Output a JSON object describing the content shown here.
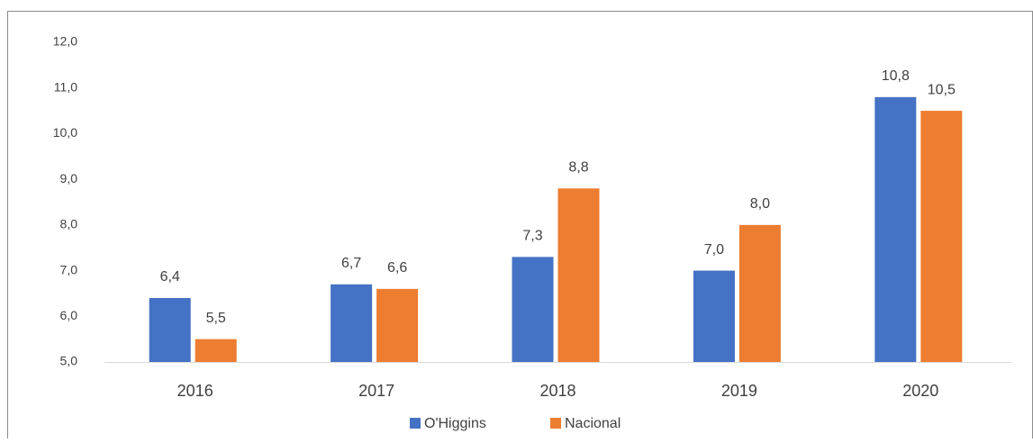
{
  "chart_data": {
    "type": "bar",
    "categories": [
      "2016",
      "2017",
      "2018",
      "2019",
      "2020"
    ],
    "series": [
      {
        "name": "O'Higgins",
        "color": "#4472c4",
        "values": [
          6.4,
          6.7,
          7.3,
          7.0,
          10.8
        ],
        "value_labels": [
          "6,4",
          "6,7",
          "7,3",
          "7,0",
          "10,8"
        ]
      },
      {
        "name": "Nacional",
        "color": "#ed7d31",
        "values": [
          5.5,
          6.6,
          8.8,
          8.0,
          10.5
        ],
        "value_labels": [
          "5,5",
          "6,6",
          "8,8",
          "8,0",
          "10,5"
        ]
      }
    ],
    "ylim": [
      5,
      12
    ],
    "yticks": [
      {
        "value": 5,
        "label": "5,0"
      },
      {
        "value": 6,
        "label": "6,0"
      },
      {
        "value": 7,
        "label": "7,0"
      },
      {
        "value": 8,
        "label": "8,0"
      },
      {
        "value": 9,
        "label": "9,0"
      },
      {
        "value": 10,
        "label": "10,0"
      },
      {
        "value": 11,
        "label": "11,0"
      },
      {
        "value": 12,
        "label": "12,0"
      }
    ],
    "grid": false,
    "legend": "bottom"
  }
}
